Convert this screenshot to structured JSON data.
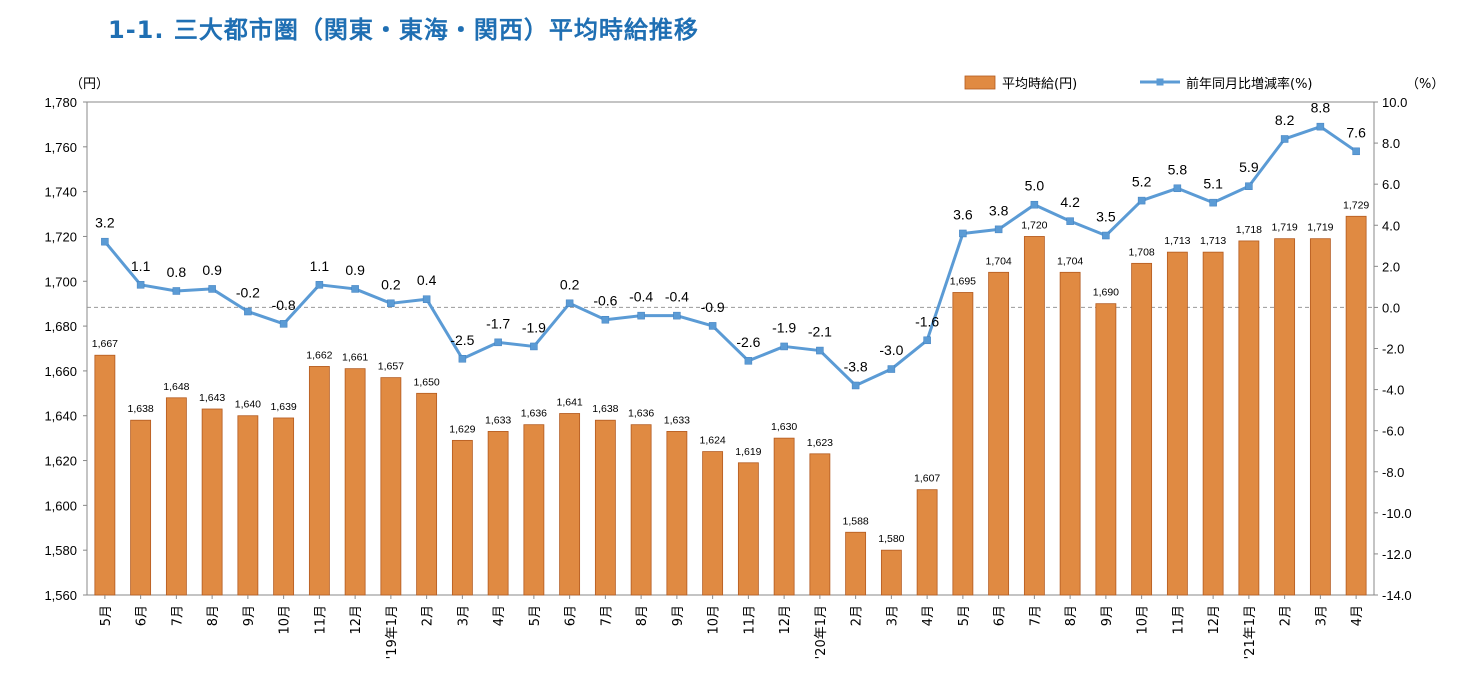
{
  "chart_data": {
    "type": "bar",
    "title": "1-1. 三大都市圏（関東・東海・関西）平均時給推移",
    "y_left_unit": "（円）",
    "y_right_unit": "（%）",
    "categories": [
      "5月",
      "6月",
      "7月",
      "8月",
      "9月",
      "10月",
      "11月",
      "12月",
      "'19年1月",
      "2月",
      "3月",
      "4月",
      "5月",
      "6月",
      "7月",
      "8月",
      "9月",
      "10月",
      "11月",
      "12月",
      "'20年1月",
      "2月",
      "3月",
      "4月",
      "5月",
      "6月",
      "7月",
      "8月",
      "9月",
      "10月",
      "11月",
      "12月",
      "'21年1月",
      "2月",
      "3月",
      "4月"
    ],
    "series": [
      {
        "name": "平均時給(円)",
        "type": "bar",
        "axis": "left",
        "color": "#e08a42",
        "values": [
          1667,
          1638,
          1648,
          1643,
          1640,
          1639,
          1662,
          1661,
          1657,
          1650,
          1629,
          1633,
          1636,
          1641,
          1638,
          1636,
          1633,
          1624,
          1619,
          1630,
          1623,
          1588,
          1580,
          1607,
          1695,
          1704,
          1720,
          1704,
          1690,
          1708,
          1713,
          1713,
          1718,
          1719,
          1719,
          1729
        ]
      },
      {
        "name": "前年同月比増減率(%)",
        "type": "line",
        "axis": "right",
        "color": "#5b9bd5",
        "values": [
          3.2,
          1.1,
          0.8,
          0.9,
          -0.2,
          -0.8,
          1.1,
          0.9,
          0.2,
          0.4,
          -2.5,
          -1.7,
          -1.9,
          0.2,
          -0.6,
          -0.4,
          -0.4,
          -0.9,
          -2.6,
          -1.9,
          -2.1,
          -3.8,
          -3.0,
          -1.6,
          3.6,
          3.8,
          5.0,
          4.2,
          3.5,
          5.2,
          5.8,
          5.1,
          5.9,
          8.2,
          8.8,
          7.6
        ]
      }
    ],
    "y_left": {
      "min": 1560,
      "max": 1780,
      "step": 20
    },
    "y_right": {
      "min": -14,
      "max": 10,
      "step": 2
    },
    "legend_position": "top-right",
    "grid": false
  }
}
